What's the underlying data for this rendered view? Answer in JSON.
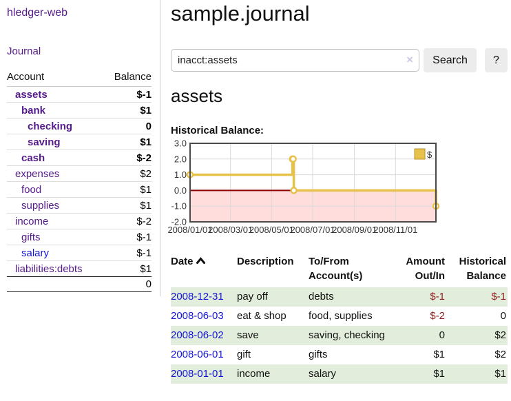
{
  "colors": {
    "purple": "#551a8b",
    "blue": "#1515d6",
    "darkred": "#8f1d1d",
    "rose": "#c17474",
    "rowgreen": "#e2eedb",
    "gold": "#e7c24b",
    "gold_border": "#b8922a",
    "pink_region": "#ffdddd",
    "zero_line": "#8b0000",
    "plot_border": "#4a4a4a",
    "gridline": "#d9d9d9"
  },
  "sidebar": {
    "brand": "hledger-web",
    "journal_link": "Journal",
    "accounts_table": {
      "headers": {
        "account": "Account",
        "balance": "Balance"
      },
      "rows": [
        {
          "name": "assets",
          "indent": 0,
          "bold": true,
          "balance": "$-1",
          "neg": "dark"
        },
        {
          "name": "bank",
          "indent": 1,
          "bold": true,
          "balance": "$1",
          "neg": null
        },
        {
          "name": "checking",
          "indent": 2,
          "bold": true,
          "balance": "0",
          "neg": null
        },
        {
          "name": "saving",
          "indent": 2,
          "bold": true,
          "balance": "$1",
          "neg": null
        },
        {
          "name": "cash",
          "indent": 1,
          "bold": true,
          "balance": "$-2",
          "neg": "dark"
        },
        {
          "name": "expenses",
          "indent": 0,
          "bold": false,
          "balance": "$2",
          "neg": null
        },
        {
          "name": "food",
          "indent": 1,
          "bold": false,
          "balance": "$1",
          "neg": null
        },
        {
          "name": "supplies",
          "indent": 1,
          "bold": false,
          "balance": "$1",
          "neg": null
        },
        {
          "name": "income",
          "indent": 0,
          "bold": false,
          "balance": "$-2",
          "neg": "rose"
        },
        {
          "name": "gifts",
          "indent": 1,
          "bold": false,
          "balance": "$-1",
          "neg": "rose"
        },
        {
          "name": "salary",
          "indent": 1,
          "bold": false,
          "balance": "$-1",
          "neg": "rose",
          "link": "blue"
        },
        {
          "name": "liabilities:debts",
          "indent": 0,
          "bold": false,
          "balance": "$1",
          "neg": null,
          "last": true
        }
      ],
      "total": "0"
    }
  },
  "main": {
    "title": "sample.journal",
    "search": {
      "value": "inacct:assets",
      "clear_icon": "×",
      "search_button": "Search",
      "help_button": "?"
    },
    "account_heading": "assets",
    "chart_label": "Historical Balance:"
  },
  "chart_data": {
    "type": "line",
    "title": "Historical Balance",
    "step": true,
    "ylim": [
      -2,
      3
    ],
    "yticks": [
      {
        "label": "3.0",
        "value": 3
      },
      {
        "label": "2.0",
        "value": 2
      },
      {
        "label": "1.0",
        "value": 1
      },
      {
        "label": "0.0",
        "value": 0
      },
      {
        "label": "-1.0",
        "value": -1
      },
      {
        "label": "-2.0",
        "value": -2
      }
    ],
    "xticks": [
      {
        "label": "2008/01/01",
        "day": 0
      },
      {
        "label": "2008/03/01",
        "day": 60
      },
      {
        "label": "2008/05/01",
        "day": 121
      },
      {
        "label": "2008/07/01",
        "day": 182
      },
      {
        "label": "2008/09/01",
        "day": 244
      },
      {
        "label": "2008/11/01",
        "day": 305
      }
    ],
    "x_max_day": 365,
    "legend": [
      {
        "name": "$"
      }
    ],
    "negative_region_shaded": true,
    "series": [
      {
        "name": "$",
        "points": [
          {
            "date": "2008-01-01",
            "day": 0,
            "value": 1
          },
          {
            "date": "2008-06-01",
            "day": 152,
            "value": 2
          },
          {
            "date": "2008-06-02",
            "day": 153,
            "value": 2
          },
          {
            "date": "2008-06-03",
            "day": 154,
            "value": 0
          },
          {
            "date": "2008-12-31",
            "day": 365,
            "value": -1
          }
        ]
      }
    ]
  },
  "register": {
    "headers": {
      "date": "Date",
      "description": "Description",
      "accounts": "To/From Account(s)",
      "amount": "Amount Out/In",
      "balance": "Historical Balance"
    },
    "sort": {
      "column": "date",
      "direction": "asc"
    },
    "rows": [
      {
        "date": "2008-12-31",
        "description": "pay off",
        "accounts": "debts",
        "amount": "$-1",
        "amount_neg": true,
        "balance": "$-1",
        "balance_neg": true
      },
      {
        "date": "2008-06-03",
        "description": "eat & shop",
        "accounts": "food, supplies",
        "amount": "$-2",
        "amount_neg": true,
        "balance": "0",
        "balance_neg": false
      },
      {
        "date": "2008-06-02",
        "description": "save",
        "accounts": "saving, checking",
        "amount": "0",
        "amount_neg": false,
        "balance": "$2",
        "balance_neg": false
      },
      {
        "date": "2008-06-01",
        "description": "gift",
        "accounts": "gifts",
        "amount": "$1",
        "amount_neg": false,
        "balance": "$2",
        "balance_neg": false
      },
      {
        "date": "2008-01-01",
        "description": "income",
        "accounts": "salary",
        "amount": "$1",
        "amount_neg": false,
        "balance": "$1",
        "balance_neg": false
      }
    ]
  }
}
